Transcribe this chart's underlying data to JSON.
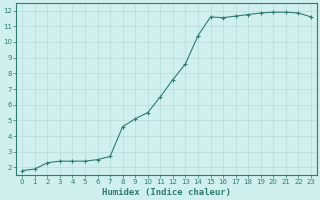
{
  "x": [
    0,
    1,
    2,
    3,
    4,
    5,
    6,
    7,
    8,
    9,
    10,
    11,
    12,
    13,
    14,
    15,
    16,
    17,
    18,
    19,
    20,
    21,
    22,
    23
  ],
  "y": [
    1.8,
    1.9,
    2.3,
    2.4,
    2.4,
    2.4,
    2.5,
    2.7,
    4.6,
    5.1,
    5.5,
    6.5,
    7.6,
    8.6,
    10.4,
    11.6,
    11.55,
    11.65,
    11.75,
    11.85,
    11.9,
    11.9,
    11.85,
    11.6
  ],
  "line_color": "#2e7d6e",
  "marker": "+",
  "marker_size": 3,
  "bg_color": "#d0f0ee",
  "grid_color": "#b8ddd9",
  "tick_color": "#2e7d6e",
  "xlabel": "Humidex (Indice chaleur)",
  "xlabel_fontsize": 6.5,
  "ylim": [
    1.5,
    12.5
  ],
  "xlim": [
    -0.5,
    23.5
  ],
  "yticks": [
    2,
    3,
    4,
    5,
    6,
    7,
    8,
    9,
    10,
    11,
    12
  ],
  "xticks": [
    0,
    1,
    2,
    3,
    4,
    5,
    6,
    7,
    8,
    9,
    10,
    11,
    12,
    13,
    14,
    15,
    16,
    17,
    18,
    19,
    20,
    21,
    22,
    23
  ]
}
